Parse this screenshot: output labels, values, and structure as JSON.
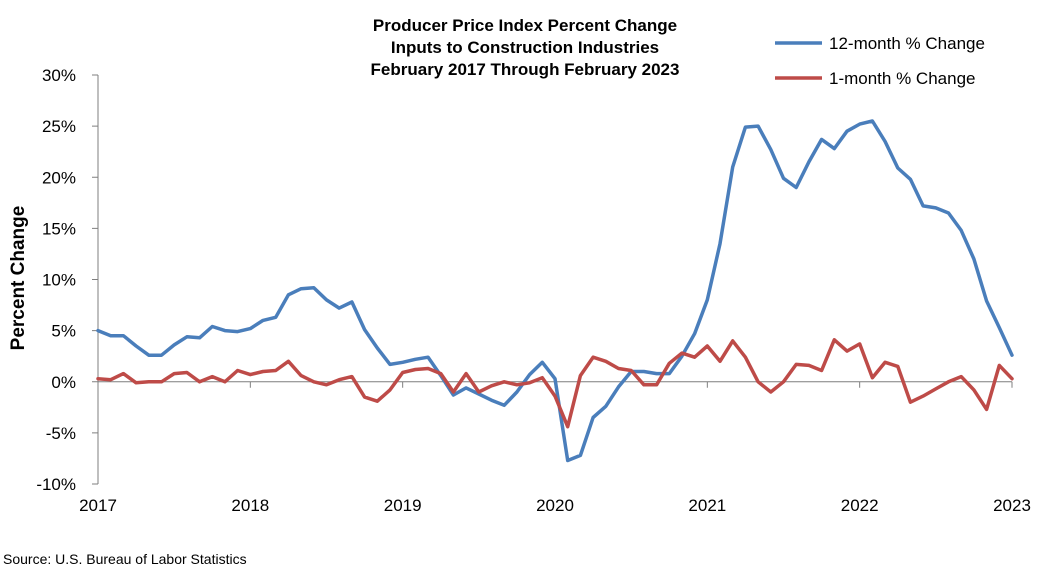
{
  "chart_data": {
    "type": "line",
    "title_lines": [
      "Producer Price Index Percent Change",
      "Inputs to Construction Industries",
      "February 2017 Through February 2023"
    ],
    "ylabel": "Percent Change",
    "xlabel": "",
    "ylim": [
      -10,
      30
    ],
    "yticks": [
      -10,
      -5,
      0,
      5,
      10,
      15,
      20,
      25,
      30
    ],
    "ytick_labels": [
      "-10%",
      "-5%",
      "0%",
      "5%",
      "10%",
      "15%",
      "20%",
      "25%",
      "30%"
    ],
    "xlim": [
      0,
      72
    ],
    "xticks": [
      0,
      12,
      24,
      36,
      48,
      60,
      72
    ],
    "xtick_labels": [
      "2017",
      "2018",
      "2019",
      "2020",
      "2021",
      "2022",
      "2023"
    ],
    "colors": {
      "series_12m": "#4a7ebb",
      "series_1m": "#be4b48",
      "axis": "#7f7f7f"
    },
    "legend_position": "top-right",
    "series": [
      {
        "name": "12-month % Change",
        "x": [
          0,
          1,
          2,
          3,
          4,
          5,
          6,
          7,
          8,
          9,
          10,
          11,
          12,
          13,
          14,
          15,
          16,
          17,
          18,
          19,
          20,
          21,
          22,
          23,
          24,
          25,
          26,
          27,
          28,
          29,
          30,
          31,
          32,
          33,
          34,
          35,
          36,
          37,
          38,
          39,
          40,
          41,
          42,
          43,
          44,
          45,
          46,
          47,
          48,
          49,
          50,
          51,
          52,
          53,
          54,
          55,
          56,
          57,
          58,
          59,
          60,
          61,
          62,
          63,
          64,
          65,
          66,
          67,
          68,
          69,
          70,
          71,
          72
        ],
        "values": [
          5.0,
          4.5,
          4.5,
          3.5,
          2.6,
          2.6,
          3.6,
          4.4,
          4.3,
          5.4,
          5.0,
          4.9,
          5.2,
          6.0,
          6.3,
          8.5,
          9.1,
          9.2,
          8.0,
          7.2,
          7.8,
          5.1,
          3.3,
          1.7,
          1.9,
          2.2,
          2.4,
          0.6,
          -1.3,
          -0.6,
          -1.2,
          -1.8,
          -2.3,
          -1.0,
          0.7,
          1.9,
          0.3,
          -7.7,
          -7.2,
          -3.5,
          -2.4,
          -0.5,
          1.0,
          1.0,
          0.8,
          0.8,
          2.5,
          4.7,
          8.0,
          13.5,
          21.0,
          24.9,
          25.0,
          22.7,
          19.9,
          19.0,
          21.5,
          23.7,
          22.8,
          24.5,
          25.2,
          25.5,
          23.5,
          20.9,
          19.8,
          17.2,
          17.0,
          16.5,
          14.8,
          12.0,
          7.9,
          5.3,
          2.6
        ]
      },
      {
        "name": "1-month % Change",
        "x": [
          0,
          1,
          2,
          3,
          4,
          5,
          6,
          7,
          8,
          9,
          10,
          11,
          12,
          13,
          14,
          15,
          16,
          17,
          18,
          19,
          20,
          21,
          22,
          23,
          24,
          25,
          26,
          27,
          28,
          29,
          30,
          31,
          32,
          33,
          34,
          35,
          36,
          37,
          38,
          39,
          40,
          41,
          42,
          43,
          44,
          45,
          46,
          47,
          48,
          49,
          50,
          51,
          52,
          53,
          54,
          55,
          56,
          57,
          58,
          59,
          60,
          61,
          62,
          63,
          64,
          65,
          66,
          67,
          68,
          69,
          70,
          71,
          72
        ],
        "values": [
          0.3,
          0.2,
          0.8,
          -0.1,
          0.0,
          0.0,
          0.8,
          0.9,
          0.0,
          0.5,
          0.0,
          1.1,
          0.7,
          1.0,
          1.1,
          2.0,
          0.6,
          0.0,
          -0.3,
          0.2,
          0.5,
          -1.5,
          -1.9,
          -0.8,
          0.9,
          1.2,
          1.3,
          0.8,
          -1.0,
          0.8,
          -1.0,
          -0.4,
          0.0,
          -0.3,
          -0.1,
          0.4,
          -1.4,
          -4.4,
          0.6,
          2.4,
          2.0,
          1.3,
          1.1,
          -0.3,
          -0.3,
          1.8,
          2.8,
          2.4,
          3.5,
          2.0,
          4.0,
          2.4,
          0.0,
          -1.0,
          0.0,
          1.7,
          1.6,
          1.1,
          4.1,
          3.0,
          3.7,
          0.4,
          1.9,
          1.5,
          -2.0,
          -1.4,
          -0.7,
          0.0,
          0.5,
          -0.8,
          -2.7,
          1.6,
          0.3
        ]
      }
    ]
  },
  "source": "Source: U.S. Bureau of Labor Statistics"
}
